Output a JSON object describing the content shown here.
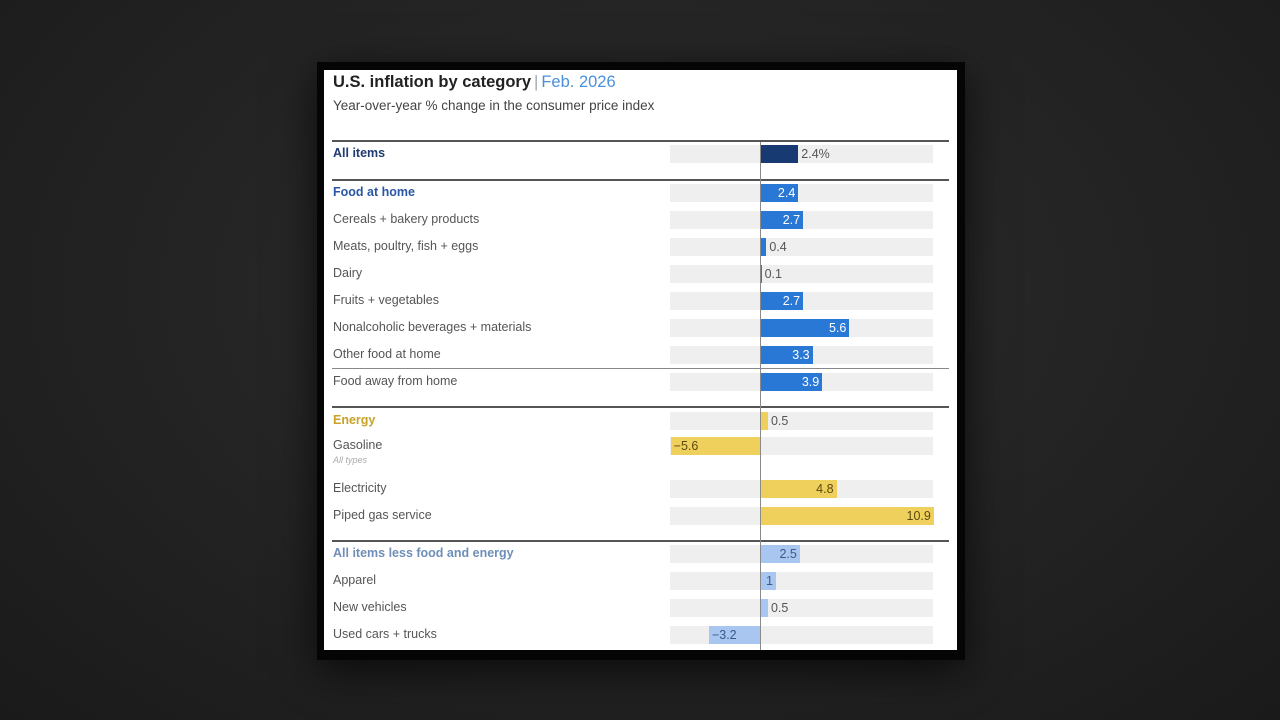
{
  "chart": {
    "title": "U.S. inflation by category",
    "separator": "|",
    "date": "Feb. 2026",
    "subtitle": "Year-over-year % change in the consumer price index"
  },
  "colors": {
    "all_items": "#173a73",
    "food": "#2a78d6",
    "energy": "#efd05c",
    "core": "#a8c6f0",
    "head_all": "#1f3b70",
    "head_food": "#2a56a6",
    "head_energy": "#c9a227",
    "head_core": "#6f8fb8"
  },
  "rows": [
    {
      "label": "All items",
      "value": 2.4,
      "display": "2.4%",
      "group": "all",
      "head": true
    },
    {
      "label": "Food at home",
      "value": 2.4,
      "display": "2.4",
      "group": "food",
      "head": true
    },
    {
      "label": "Cereals + bakery products",
      "value": 2.7,
      "display": "2.7",
      "group": "food"
    },
    {
      "label": "Meats, poultry, fish + eggs",
      "value": 0.4,
      "display": "0.4",
      "group": "food"
    },
    {
      "label": "Dairy",
      "value": 0.1,
      "display": "0.1",
      "group": "food"
    },
    {
      "label": "Fruits + vegetables",
      "value": 2.7,
      "display": "2.7",
      "group": "food"
    },
    {
      "label": "Nonalcoholic beverages + materials",
      "value": 5.6,
      "display": "5.6",
      "group": "food"
    },
    {
      "label": "Other food at home",
      "value": 3.3,
      "display": "3.3",
      "group": "food"
    },
    {
      "label": "Food away from home",
      "value": 3.9,
      "display": "3.9",
      "group": "food"
    },
    {
      "label": "Energy",
      "value": 0.5,
      "display": "0.5",
      "group": "energy",
      "head": true
    },
    {
      "label": "Gasoline",
      "sublabel": "All types",
      "value": -5.6,
      "display": "−5.6",
      "group": "energy"
    },
    {
      "label": "Electricity",
      "value": 4.8,
      "display": "4.8",
      "group": "energy"
    },
    {
      "label": "Piped gas service",
      "value": 10.9,
      "display": "10.9",
      "group": "energy"
    },
    {
      "label": "All items less food and energy",
      "value": 2.5,
      "display": "2.5",
      "group": "core",
      "head": true
    },
    {
      "label": "Apparel",
      "value": 1,
      "display": "1",
      "group": "core"
    },
    {
      "label": "New vehicles",
      "value": 0.5,
      "display": "0.5",
      "group": "core"
    },
    {
      "label": "Used cars + trucks",
      "value": -3.2,
      "display": "−3.2",
      "group": "core"
    }
  ],
  "chart_data": {
    "type": "bar",
    "orientation": "horizontal",
    "title": "U.S. inflation by category | Feb. 2026",
    "subtitle": "Year-over-year % change in the consumer price index",
    "xlabel": "",
    "ylabel": "",
    "xlim": [
      -5.6,
      10.9
    ],
    "grid": false,
    "legend": null,
    "categories": [
      "All items",
      "Food at home",
      "Cereals + bakery products",
      "Meats, poultry, fish + eggs",
      "Dairy",
      "Fruits + vegetables",
      "Nonalcoholic beverages + materials",
      "Other food at home",
      "Food away from home",
      "Energy",
      "Gasoline (All types)",
      "Electricity",
      "Piped gas service",
      "All items less food and energy",
      "Apparel",
      "New vehicles",
      "Used cars + trucks"
    ],
    "values": [
      2.4,
      2.4,
      2.7,
      0.4,
      0.1,
      2.7,
      5.6,
      3.3,
      3.9,
      0.5,
      -5.6,
      4.8,
      10.9,
      2.5,
      1,
      0.5,
      -3.2
    ],
    "groups": [
      "All items",
      "Food",
      "Food",
      "Food",
      "Food",
      "Food",
      "Food",
      "Food",
      "Food",
      "Energy",
      "Energy",
      "Energy",
      "Energy",
      "Core",
      "Core",
      "Core",
      "Core"
    ]
  }
}
